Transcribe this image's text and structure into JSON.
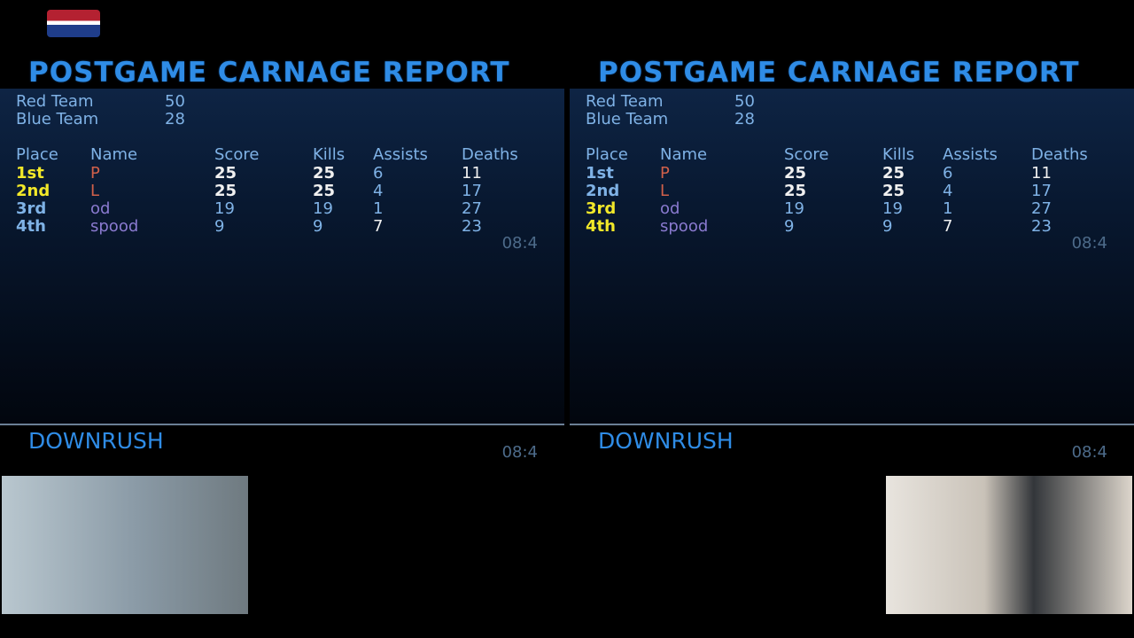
{
  "panels": [
    {
      "title": "POSTGAME CARNAGE REPORT",
      "teams": [
        {
          "name": "Red Team",
          "score": 50
        },
        {
          "name": "Blue Team",
          "score": 28
        }
      ],
      "columns": [
        "Place",
        "Name",
        "Score",
        "Kills",
        "Assists",
        "Deaths"
      ],
      "rows": [
        {
          "place": "1st",
          "name": "P",
          "score": 25,
          "kills": 25,
          "assists": 6,
          "deaths": 11,
          "place_color": "#f2e829"
        },
        {
          "place": "2nd",
          "name": "L",
          "score": 25,
          "kills": 25,
          "assists": 4,
          "deaths": 17,
          "place_color": "#f2e829"
        },
        {
          "place": "3rd",
          "name": "od",
          "score": 19,
          "kills": 19,
          "assists": 1,
          "deaths": 27,
          "place_color": "#7fb2e6"
        },
        {
          "place": "4th",
          "name": "spood",
          "score": 9,
          "kills": 9,
          "assists": 7,
          "deaths": 23,
          "place_color": "#7fb2e6"
        }
      ],
      "timer": "08:4",
      "map": "DOWNRUSH",
      "map_timer": "08:4"
    },
    {
      "title": "POSTGAME CARNAGE REPORT",
      "teams": [
        {
          "name": "Red Team",
          "score": 50
        },
        {
          "name": "Blue Team",
          "score": 28
        }
      ],
      "columns": [
        "Place",
        "Name",
        "Score",
        "Kills",
        "Assists",
        "Deaths"
      ],
      "rows": [
        {
          "place": "1st",
          "name": "P",
          "score": 25,
          "kills": 25,
          "assists": 6,
          "deaths": 11,
          "place_color": "#7fb2e6"
        },
        {
          "place": "2nd",
          "name": "L",
          "score": 25,
          "kills": 25,
          "assists": 4,
          "deaths": 17,
          "place_color": "#7fb2e6"
        },
        {
          "place": "3rd",
          "name": "od",
          "score": 19,
          "kills": 19,
          "assists": 1,
          "deaths": 27,
          "place_color": "#f2e829"
        },
        {
          "place": "4th",
          "name": "spood",
          "score": 9,
          "kills": 9,
          "assists": 7,
          "deaths": 23,
          "place_color": "#f2e829"
        }
      ],
      "timer": "08:4",
      "map": "DOWNRUSH",
      "map_timer": "08:4"
    }
  ]
}
